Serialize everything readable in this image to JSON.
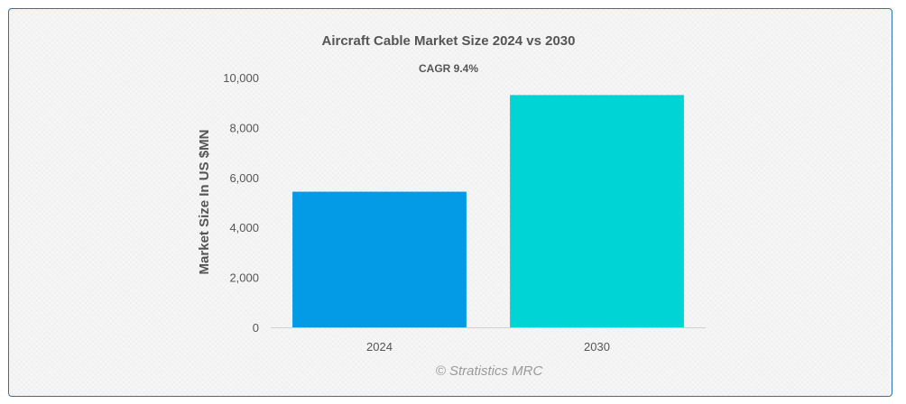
{
  "chart_data": {
    "type": "bar",
    "title": "Aircraft Cable Market Size 2024 vs 2030",
    "subtitle": "CAGR 9.4%",
    "xlabel": "",
    "ylabel": "Market Size In US $MN",
    "categories": [
      "2024",
      "2030"
    ],
    "values": [
      5430,
      9300
    ],
    "colors": [
      "#039be5",
      "#00d4d4"
    ],
    "ylim": [
      0,
      10000
    ],
    "yticks": [
      0,
      2000,
      4000,
      6000,
      8000,
      10000
    ],
    "ytick_labels": [
      "0",
      "2,000",
      "4,000",
      "6,000",
      "8,000",
      "10,000"
    ],
    "grid": false,
    "legend": "none"
  },
  "watermark": "© Stratistics MRC"
}
